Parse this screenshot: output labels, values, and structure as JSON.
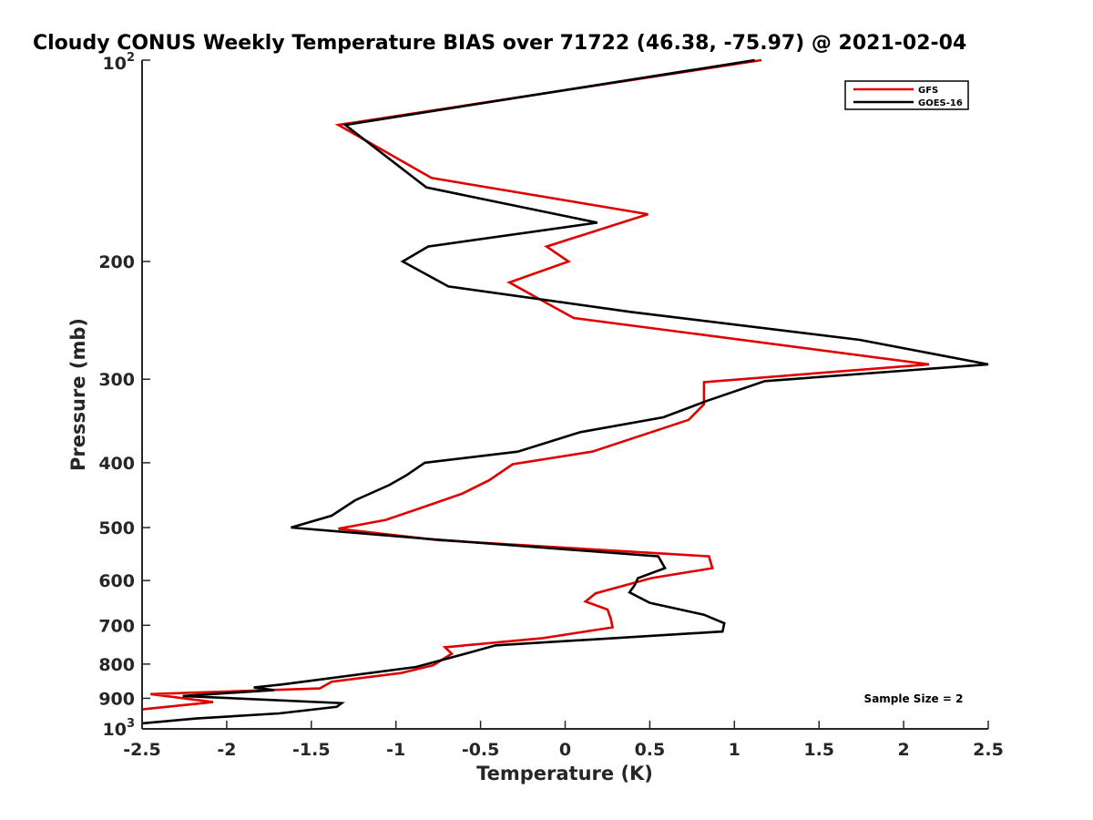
{
  "chart_data": {
    "type": "line",
    "title": "Cloudy CONUS Weekly Temperature BIAS over 71722 (46.38, -75.97) @ 2021-02-04",
    "xlabel": "Temperature (K)",
    "ylabel": "Pressure (mb)",
    "xlim": [
      -2.5,
      2.5
    ],
    "ylim": [
      1000,
      100
    ],
    "yscale": "log",
    "x_ticks": [
      "-2.5",
      "-2",
      "-1.5",
      "-1",
      "-0.5",
      "0",
      "0.5",
      "1",
      "1.5",
      "2",
      "2.5"
    ],
    "y_ticks": [
      {
        "value": 100,
        "base": "10",
        "exp": "2"
      },
      {
        "value": 200,
        "label": "200"
      },
      {
        "value": 300,
        "label": "300"
      },
      {
        "value": 400,
        "label": "400"
      },
      {
        "value": 500,
        "label": "500"
      },
      {
        "value": 600,
        "label": "600"
      },
      {
        "value": 700,
        "label": "700"
      },
      {
        "value": 800,
        "label": "800"
      },
      {
        "value": 900,
        "label": "900"
      },
      {
        "value": 1000,
        "base": "10",
        "exp": "3"
      }
    ],
    "grid": false,
    "legend_position": "top-right",
    "series": [
      {
        "name": "GFS",
        "color": "#e00000",
        "points": [
          [
            1.16,
            100
          ],
          [
            -1.34,
            125
          ],
          [
            -0.79,
            150
          ],
          [
            0.49,
            170
          ],
          [
            -0.11,
            190
          ],
          [
            0.02,
            200
          ],
          [
            -0.33,
            215
          ],
          [
            0.05,
            243
          ],
          [
            2.15,
            285
          ],
          [
            0.82,
            303
          ],
          [
            0.82,
            327
          ],
          [
            0.73,
            345
          ],
          [
            0.16,
            385
          ],
          [
            -0.31,
            402
          ],
          [
            -0.45,
            425
          ],
          [
            -0.61,
            445
          ],
          [
            -0.86,
            468
          ],
          [
            -1.06,
            487
          ],
          [
            -1.34,
            502
          ],
          [
            -0.75,
            522
          ],
          [
            0.85,
            552
          ],
          [
            0.87,
            575
          ],
          [
            0.51,
            595
          ],
          [
            0.18,
            627
          ],
          [
            0.12,
            645
          ],
          [
            0.25,
            663
          ],
          [
            0.27,
            685
          ],
          [
            0.28,
            705
          ],
          [
            -0.14,
            732
          ],
          [
            -0.71,
            755
          ],
          [
            -0.67,
            772
          ],
          [
            -0.78,
            803
          ],
          [
            -0.97,
            825
          ],
          [
            -1.38,
            850
          ],
          [
            -1.45,
            870
          ],
          [
            -2.45,
            887
          ],
          [
            -2.08,
            912
          ],
          [
            -2.5,
            935
          ]
        ]
      },
      {
        "name": "GOES-16",
        "color": "#000000",
        "points": [
          [
            1.12,
            100
          ],
          [
            -1.3,
            125
          ],
          [
            -0.82,
            155
          ],
          [
            0.19,
            175
          ],
          [
            -0.81,
            190
          ],
          [
            -0.96,
            200
          ],
          [
            -0.69,
            218
          ],
          [
            0.39,
            238
          ],
          [
            1.74,
            262
          ],
          [
            2.5,
            285
          ],
          [
            1.18,
            302
          ],
          [
            0.84,
            323
          ],
          [
            0.58,
            342
          ],
          [
            0.09,
            360
          ],
          [
            -0.28,
            385
          ],
          [
            -0.83,
            400
          ],
          [
            -0.94,
            418
          ],
          [
            -1.04,
            432
          ],
          [
            -1.24,
            455
          ],
          [
            -1.38,
            480
          ],
          [
            -1.62,
            500
          ],
          [
            -0.81,
            520
          ],
          [
            0.55,
            552
          ],
          [
            0.59,
            575
          ],
          [
            0.43,
            595
          ],
          [
            0.41,
            610
          ],
          [
            0.38,
            625
          ],
          [
            0.5,
            648
          ],
          [
            0.82,
            675
          ],
          [
            0.94,
            695
          ],
          [
            0.93,
            715
          ],
          [
            -0.41,
            750
          ],
          [
            -0.59,
            772
          ],
          [
            -0.88,
            808
          ],
          [
            -1.67,
            858
          ],
          [
            -1.84,
            867
          ],
          [
            -1.72,
            875
          ],
          [
            -2.26,
            893
          ],
          [
            -1.32,
            915
          ],
          [
            -1.35,
            927
          ],
          [
            -1.69,
            948
          ],
          [
            -2.18,
            965
          ],
          [
            -2.5,
            981
          ]
        ]
      }
    ],
    "annotation": "Sample Size = 2"
  }
}
